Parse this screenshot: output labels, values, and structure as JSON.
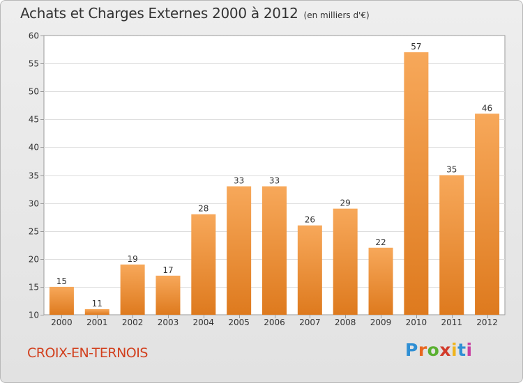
{
  "title": "Achats et Charges Externes 2000 à 2012",
  "subtitle": "(en milliers d'€)",
  "commune": "CROIX-EN-TERNOIS",
  "logo": {
    "text": "Proxiti",
    "letter_colors": [
      "#2f8fd4",
      "#e8661f",
      "#5ab031",
      "#d23a2a",
      "#f0b41c",
      "#2f8fd4",
      "#c83da0"
    ]
  },
  "colors": {
    "bar_light": "#f7a85a",
    "bar_dark": "#de7a1e",
    "commune_text": "#d2401e"
  },
  "chart_data": {
    "type": "bar",
    "categories": [
      "2000",
      "2001",
      "2002",
      "2003",
      "2004",
      "2005",
      "2006",
      "2007",
      "2008",
      "2009",
      "2010",
      "2011",
      "2012"
    ],
    "values": [
      15,
      11,
      19,
      17,
      28,
      33,
      33,
      26,
      29,
      22,
      57,
      35,
      46
    ],
    "ylim": [
      10,
      60
    ],
    "yticks": [
      10,
      15,
      20,
      25,
      30,
      35,
      40,
      45,
      50,
      55,
      60
    ],
    "grid": true
  }
}
